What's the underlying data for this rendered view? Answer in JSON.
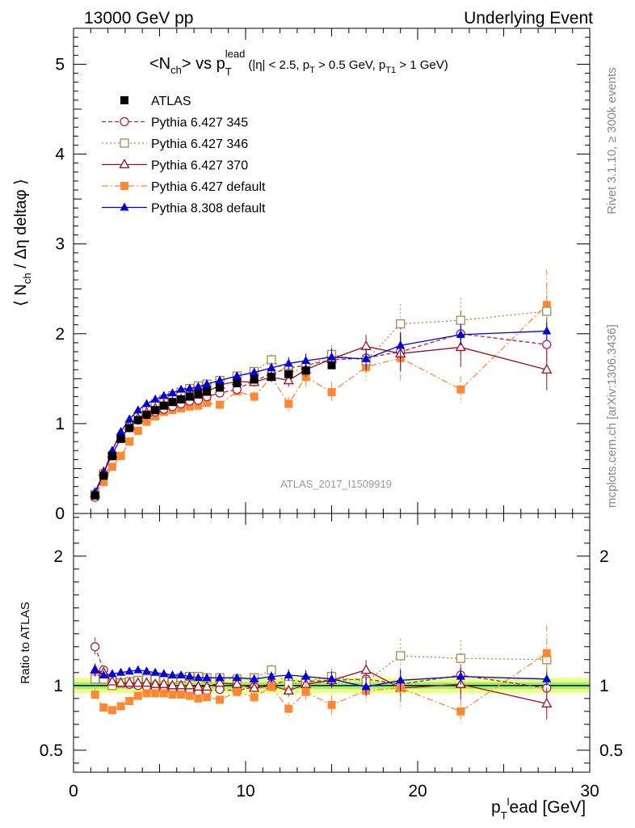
{
  "header": {
    "left": "13000 GeV pp",
    "right": "Underlying Event"
  },
  "side_labels": {
    "top": "Rivet 3.1.10, ≥ 300k events",
    "bottom": "mcplots.cern.ch [arXiv:1306.3436]"
  },
  "watermark": "ATLAS_2017_I1509919",
  "colors": {
    "atlas": "#000000",
    "p345": "#aa2244",
    "p346": "#aa8844",
    "p370": "#991122",
    "pdef": "#ff8833",
    "p8": "#0000dd",
    "band_outer": "#eeff88",
    "band_inner": "#99ee77"
  },
  "chart_data": [
    {
      "type": "line",
      "title": "<N_ch> vs p_T^lead (|η| < 2.5, p_T > 0.5 GeV, p_T1 > 1 GeV)",
      "title_parts": {
        "main": "<N",
        "main_sub": "ch",
        "vs": "> vs p",
        "vs_sub": "T",
        "vs_sup": "lead",
        "cuts_1": "(|η| < 2.5, p",
        "cuts_sub1": "T",
        "cuts_2": " > 0.5 GeV, p",
        "cuts_sub2": "T1",
        "cuts_3": " > 1 GeV)"
      },
      "ylabel": "⟨ N_ch / Δη deltaφ ⟩",
      "ylabel_parts": {
        "a": "⟨ N",
        "sub": "ch",
        "b": " / Δη deltaφ ⟩"
      },
      "xlim": [
        0,
        30
      ],
      "ylim": [
        0,
        5.4
      ],
      "y_ticks": [
        0,
        1,
        2,
        3,
        4,
        5
      ],
      "y_tick_labels": [
        "0",
        "1",
        "2",
        "3",
        "4",
        "5"
      ],
      "legend_position": "top-left",
      "series": [
        {
          "key": "atlas",
          "name": "ATLAS",
          "style": "square-filled",
          "x": [
            1.25,
            1.75,
            2.25,
            2.75,
            3.25,
            3.75,
            4.25,
            4.75,
            5.25,
            5.75,
            6.25,
            6.75,
            7.25,
            7.75,
            8.5,
            9.5,
            10.5,
            11.5,
            12.5,
            13.5,
            15
          ],
          "y": [
            0.2,
            0.42,
            0.64,
            0.83,
            0.95,
            1.04,
            1.1,
            1.15,
            1.2,
            1.24,
            1.27,
            1.3,
            1.33,
            1.36,
            1.4,
            1.45,
            1.49,
            1.52,
            1.55,
            1.59,
            1.65
          ],
          "err": [
            0.01,
            0.01,
            0.01,
            0.01,
            0.01,
            0.01,
            0.01,
            0.01,
            0.01,
            0.01,
            0.01,
            0.01,
            0.01,
            0.01,
            0.01,
            0.02,
            0.02,
            0.02,
            0.03,
            0.03,
            0.04
          ]
        },
        {
          "key": "p345",
          "name": "Pythia 6.427 345",
          "style": "circle-open-dashed",
          "x": [
            1.25,
            1.75,
            2.25,
            2.75,
            3.25,
            3.75,
            4.25,
            4.75,
            5.25,
            5.75,
            6.25,
            6.75,
            7.25,
            7.75,
            8.5,
            9.5,
            10.5,
            11.5,
            12.5,
            13.5,
            15,
            17,
            19,
            22.5,
            27.5
          ],
          "y": [
            0.18,
            0.45,
            0.66,
            0.84,
            0.96,
            1.04,
            1.1,
            1.13,
            1.16,
            1.19,
            1.22,
            1.25,
            1.26,
            1.3,
            1.34,
            1.38,
            1.48,
            1.55,
            1.62,
            1.65,
            1.71,
            1.73,
            1.8,
            2,
            1.88
          ],
          "err": [
            0.01,
            0.01,
            0.01,
            0.01,
            0.01,
            0.01,
            0.01,
            0.01,
            0.02,
            0.02,
            0.02,
            0.02,
            0.02,
            0.03,
            0.03,
            0.04,
            0.05,
            0.06,
            0.07,
            0.08,
            0.1,
            0.15,
            0.2,
            0.25,
            0.3
          ]
        },
        {
          "key": "p346",
          "name": "Pythia 6.427 346",
          "style": "square-open-dotted",
          "x": [
            1.25,
            1.75,
            2.25,
            2.75,
            3.25,
            3.75,
            4.25,
            4.75,
            5.25,
            5.75,
            6.25,
            6.75,
            7.25,
            7.75,
            8.5,
            9.5,
            10.5,
            11.5,
            12.5,
            13.5,
            15,
            17,
            19,
            22.5,
            27.5
          ],
          "y": [
            0.21,
            0.44,
            0.64,
            0.84,
            0.98,
            1.08,
            1.16,
            1.22,
            1.27,
            1.31,
            1.35,
            1.39,
            1.42,
            1.44,
            1.48,
            1.53,
            1.58,
            1.71,
            1.56,
            1.63,
            1.77,
            1.7,
            2.11,
            2.15,
            2.25
          ],
          "err": [
            0.01,
            0.01,
            0.01,
            0.01,
            0.01,
            0.01,
            0.01,
            0.01,
            0.02,
            0.02,
            0.02,
            0.02,
            0.02,
            0.03,
            0.03,
            0.04,
            0.05,
            0.06,
            0.07,
            0.08,
            0.1,
            0.15,
            0.22,
            0.25,
            0.3
          ]
        },
        {
          "key": "p370",
          "name": "Pythia 6.427 370",
          "style": "triangle-open-solid",
          "x": [
            1.25,
            1.75,
            2.25,
            2.75,
            3.25,
            3.75,
            4.25,
            4.75,
            5.25,
            5.75,
            6.25,
            6.75,
            7.25,
            7.75,
            8.5,
            9.5,
            10.5,
            11.5,
            12.5,
            13.5,
            15,
            17,
            19,
            22.5,
            27.5
          ],
          "y": [
            0.22,
            0.46,
            0.66,
            0.84,
            0.97,
            1.06,
            1.12,
            1.17,
            1.21,
            1.24,
            1.27,
            1.3,
            1.32,
            1.35,
            1.43,
            1.47,
            1.46,
            1.52,
            1.48,
            1.6,
            1.72,
            1.86,
            1.78,
            1.85,
            1.6
          ],
          "err": [
            0.01,
            0.01,
            0.01,
            0.01,
            0.01,
            0.01,
            0.01,
            0.01,
            0.02,
            0.02,
            0.02,
            0.02,
            0.02,
            0.03,
            0.03,
            0.04,
            0.05,
            0.06,
            0.07,
            0.08,
            0.1,
            0.13,
            0.2,
            0.22,
            0.23
          ]
        },
        {
          "key": "pdef",
          "name": "Pythia 6.427 default",
          "style": "square-filled-dashdot",
          "x": [
            1.25,
            1.75,
            2.25,
            2.75,
            3.25,
            3.75,
            4.25,
            4.75,
            5.25,
            5.75,
            6.25,
            6.75,
            7.25,
            7.75,
            8.5,
            9.5,
            10.5,
            11.5,
            12.5,
            13.5,
            15,
            17,
            19,
            22.5,
            27.5
          ],
          "y": [
            0.19,
            0.35,
            0.52,
            0.64,
            0.8,
            0.92,
            1.02,
            1.08,
            1.13,
            1.15,
            1.17,
            1.19,
            1.2,
            1.23,
            1.21,
            1.36,
            1.3,
            1.52,
            1.22,
            1.52,
            1.35,
            1.63,
            1.73,
            1.38,
            2.32
          ],
          "err": [
            0.01,
            0.01,
            0.01,
            0.01,
            0.01,
            0.01,
            0.01,
            0.01,
            0.02,
            0.02,
            0.02,
            0.02,
            0.02,
            0.03,
            0.03,
            0.04,
            0.06,
            0.07,
            0.08,
            0.1,
            0.12,
            0.15,
            0.25,
            0.15,
            0.4
          ]
        },
        {
          "key": "p8",
          "name": "Pythia 8.308 default",
          "style": "triangle-filled-solid",
          "x": [
            1.25,
            1.75,
            2.25,
            2.75,
            3.25,
            3.75,
            4.25,
            4.75,
            5.25,
            5.75,
            6.25,
            6.75,
            7.25,
            7.75,
            8.5,
            9.5,
            10.5,
            11.5,
            12.5,
            13.5,
            15,
            17,
            19,
            22.5,
            27.5
          ],
          "y": [
            0.24,
            0.45,
            0.7,
            0.91,
            1.05,
            1.15,
            1.22,
            1.27,
            1.31,
            1.34,
            1.38,
            1.39,
            1.41,
            1.44,
            1.48,
            1.53,
            1.57,
            1.62,
            1.67,
            1.7,
            1.74,
            1.72,
            1.87,
            1.99,
            2.03
          ],
          "err": [
            0.01,
            0.01,
            0.01,
            0.01,
            0.01,
            0.01,
            0.01,
            0.01,
            0.02,
            0.02,
            0.02,
            0.02,
            0.02,
            0.03,
            0.03,
            0.04,
            0.05,
            0.06,
            0.07,
            0.08,
            0.1,
            0.12,
            0.15,
            0.12,
            0.1
          ]
        }
      ]
    },
    {
      "type": "line",
      "ylabel": "Ratio to ATLAS",
      "xlabel": "p_T^l ead [GeV]",
      "xlabel_parts": {
        "p": "p",
        "sub": "T",
        "sup": "l",
        "rest": "ead [GeV]"
      },
      "xlim": [
        0,
        30
      ],
      "ylim": [
        0.33,
        2.33
      ],
      "x_ticks": [
        0,
        10,
        20,
        30
      ],
      "x_tick_labels": [
        "0",
        "10",
        "20",
        "30"
      ],
      "y_tick_labels": [
        "0.5",
        "1",
        "2"
      ],
      "y_ticks": [
        0.5,
        1,
        2
      ],
      "band": {
        "inner": 0.025,
        "outer": 0.06
      },
      "series": [
        {
          "key": "p345",
          "name": "Pythia 6.427 345",
          "x": [
            1.25,
            1.75,
            2.25,
            2.75,
            3.25,
            3.75,
            4.25,
            4.75,
            5.25,
            5.75,
            6.25,
            6.75,
            7.25,
            7.75,
            8.5,
            9.5,
            10.5,
            11.5,
            12.5,
            13.5,
            15,
            17,
            19,
            22.5,
            27.5
          ],
          "y": [
            1.3,
            1.12,
            1.05,
            1.02,
            1.01,
            1.0,
            0.99,
            0.98,
            0.96,
            0.96,
            0.96,
            0.96,
            0.94,
            0.96,
            0.97,
            0.96,
            0.99,
            1.01,
            1.04,
            1.03,
            1.04,
            1.05,
            1.01,
            1.08,
            0.98
          ]
        },
        {
          "key": "p346",
          "name": "Pythia 6.427 346",
          "x": [
            1.25,
            1.75,
            2.25,
            2.75,
            3.25,
            3.75,
            4.25,
            4.75,
            5.25,
            5.75,
            6.25,
            6.75,
            7.25,
            7.75,
            8.5,
            9.5,
            10.5,
            11.5,
            12.5,
            13.5,
            15,
            17,
            19,
            22.5,
            27.5
          ],
          "y": [
            1.05,
            1.05,
            1.0,
            1.02,
            1.03,
            1.04,
            1.05,
            1.06,
            1.06,
            1.05,
            1.06,
            1.07,
            1.07,
            1.06,
            1.06,
            1.05,
            1.06,
            1.12,
            1.01,
            1.03,
            1.07,
            1.03,
            1.23,
            1.21,
            1.2
          ]
        },
        {
          "key": "p370",
          "name": "Pythia 6.427 370",
          "x": [
            1.25,
            1.75,
            2.25,
            2.75,
            3.25,
            3.75,
            4.25,
            4.75,
            5.25,
            5.75,
            6.25,
            6.75,
            7.25,
            7.75,
            8.5,
            9.5,
            10.5,
            11.5,
            12.5,
            13.5,
            15,
            17,
            19,
            22.5,
            27.5
          ],
          "y": [
            1.12,
            1.1,
            1.03,
            1.02,
            1.02,
            1.02,
            1.02,
            1.01,
            1.01,
            1.0,
            1.0,
            1.0,
            0.99,
            0.99,
            1.02,
            1.01,
            0.98,
            1.0,
            0.96,
            1.01,
            1.04,
            1.12,
            0.98,
            1.01,
            0.86
          ]
        },
        {
          "key": "pdef",
          "name": "Pythia 6.427 default",
          "x": [
            1.25,
            1.75,
            2.25,
            2.75,
            3.25,
            3.75,
            4.25,
            4.75,
            5.25,
            5.75,
            6.25,
            6.75,
            7.25,
            7.75,
            8.5,
            9.5,
            10.5,
            11.5,
            12.5,
            13.5,
            15,
            17,
            19,
            22.5,
            27.5
          ],
          "y": [
            0.93,
            0.83,
            0.81,
            0.84,
            0.88,
            0.92,
            0.94,
            0.94,
            0.94,
            0.93,
            0.93,
            0.92,
            0.9,
            0.91,
            0.89,
            0.95,
            0.91,
            0.99,
            0.82,
            0.95,
            0.85,
            0.96,
            0.98,
            0.8,
            1.25
          ]
        },
        {
          "key": "p8",
          "name": "Pythia 8.308 default",
          "x": [
            1.25,
            1.75,
            2.25,
            2.75,
            3.25,
            3.75,
            4.25,
            4.75,
            5.25,
            5.75,
            6.25,
            6.75,
            7.25,
            7.75,
            8.5,
            9.5,
            10.5,
            11.5,
            12.5,
            13.5,
            15,
            17,
            19,
            22.5,
            27.5
          ],
          "y": [
            1.12,
            1.08,
            1.09,
            1.1,
            1.11,
            1.12,
            1.11,
            1.1,
            1.09,
            1.08,
            1.08,
            1.07,
            1.06,
            1.06,
            1.06,
            1.06,
            1.05,
            1.07,
            1.08,
            1.07,
            1.05,
            0.99,
            1.04,
            1.07,
            1.05
          ]
        }
      ]
    }
  ]
}
